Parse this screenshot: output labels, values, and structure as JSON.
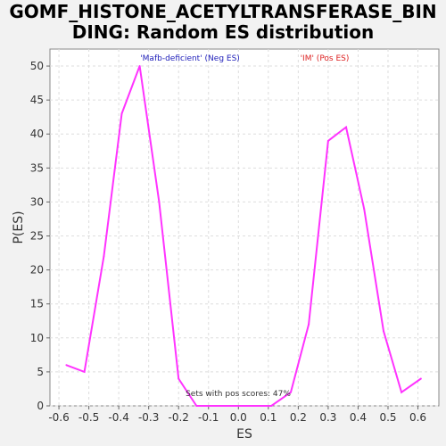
{
  "chart_data": {
    "type": "line",
    "title_lines": [
      "GOMF_HISTONE_ACETYLTRANSFERASE_BIN",
      "DING: Random ES distribution"
    ],
    "xlabel": "ES",
    "ylabel": "P(ES)",
    "xlim": [
      -0.63,
      0.67
    ],
    "ylim": [
      0,
      52.5
    ],
    "xticks": [
      -0.6,
      -0.5,
      -0.4,
      -0.3,
      -0.2,
      -0.1,
      0.0,
      0.1,
      0.2,
      0.3,
      0.4,
      0.5,
      0.6
    ],
    "xtick_labels": [
      "-0.6",
      "-0.5",
      "-0.4",
      "-0.3",
      "-0.2",
      "-0.1",
      "0.0",
      "0.1",
      "0.2",
      "0.3",
      "0.4",
      "0.5",
      "0.6"
    ],
    "yticks": [
      0,
      5,
      10,
      15,
      20,
      25,
      30,
      35,
      40,
      45,
      50
    ],
    "ytick_labels": [
      "0",
      "5",
      "10",
      "15",
      "20",
      "25",
      "30",
      "35",
      "40",
      "45",
      "50"
    ],
    "grid": true,
    "series": [
      {
        "color": "#ff33ff",
        "x": [
          -0.575,
          -0.515,
          -0.45,
          -0.39,
          -0.33,
          -0.265,
          -0.2,
          -0.14,
          -0.075,
          -0.01,
          0.05,
          0.11,
          0.175,
          0.235,
          0.3,
          0.36,
          0.42,
          0.485,
          0.545,
          0.61
        ],
        "y": [
          6,
          5,
          22,
          43,
          50,
          30,
          4,
          0,
          0,
          0,
          0,
          0,
          2,
          12,
          39,
          41,
          29,
          11,
          2,
          4
        ]
      }
    ],
    "annotations": {
      "neg_label": "'Mafb-deficient' (Neg ES)",
      "neg_color": "#2222bb",
      "pos_label": "'IM' (Pos ES)",
      "pos_color": "#dd2222",
      "footer": "Sets with pos scores: 47%"
    }
  }
}
